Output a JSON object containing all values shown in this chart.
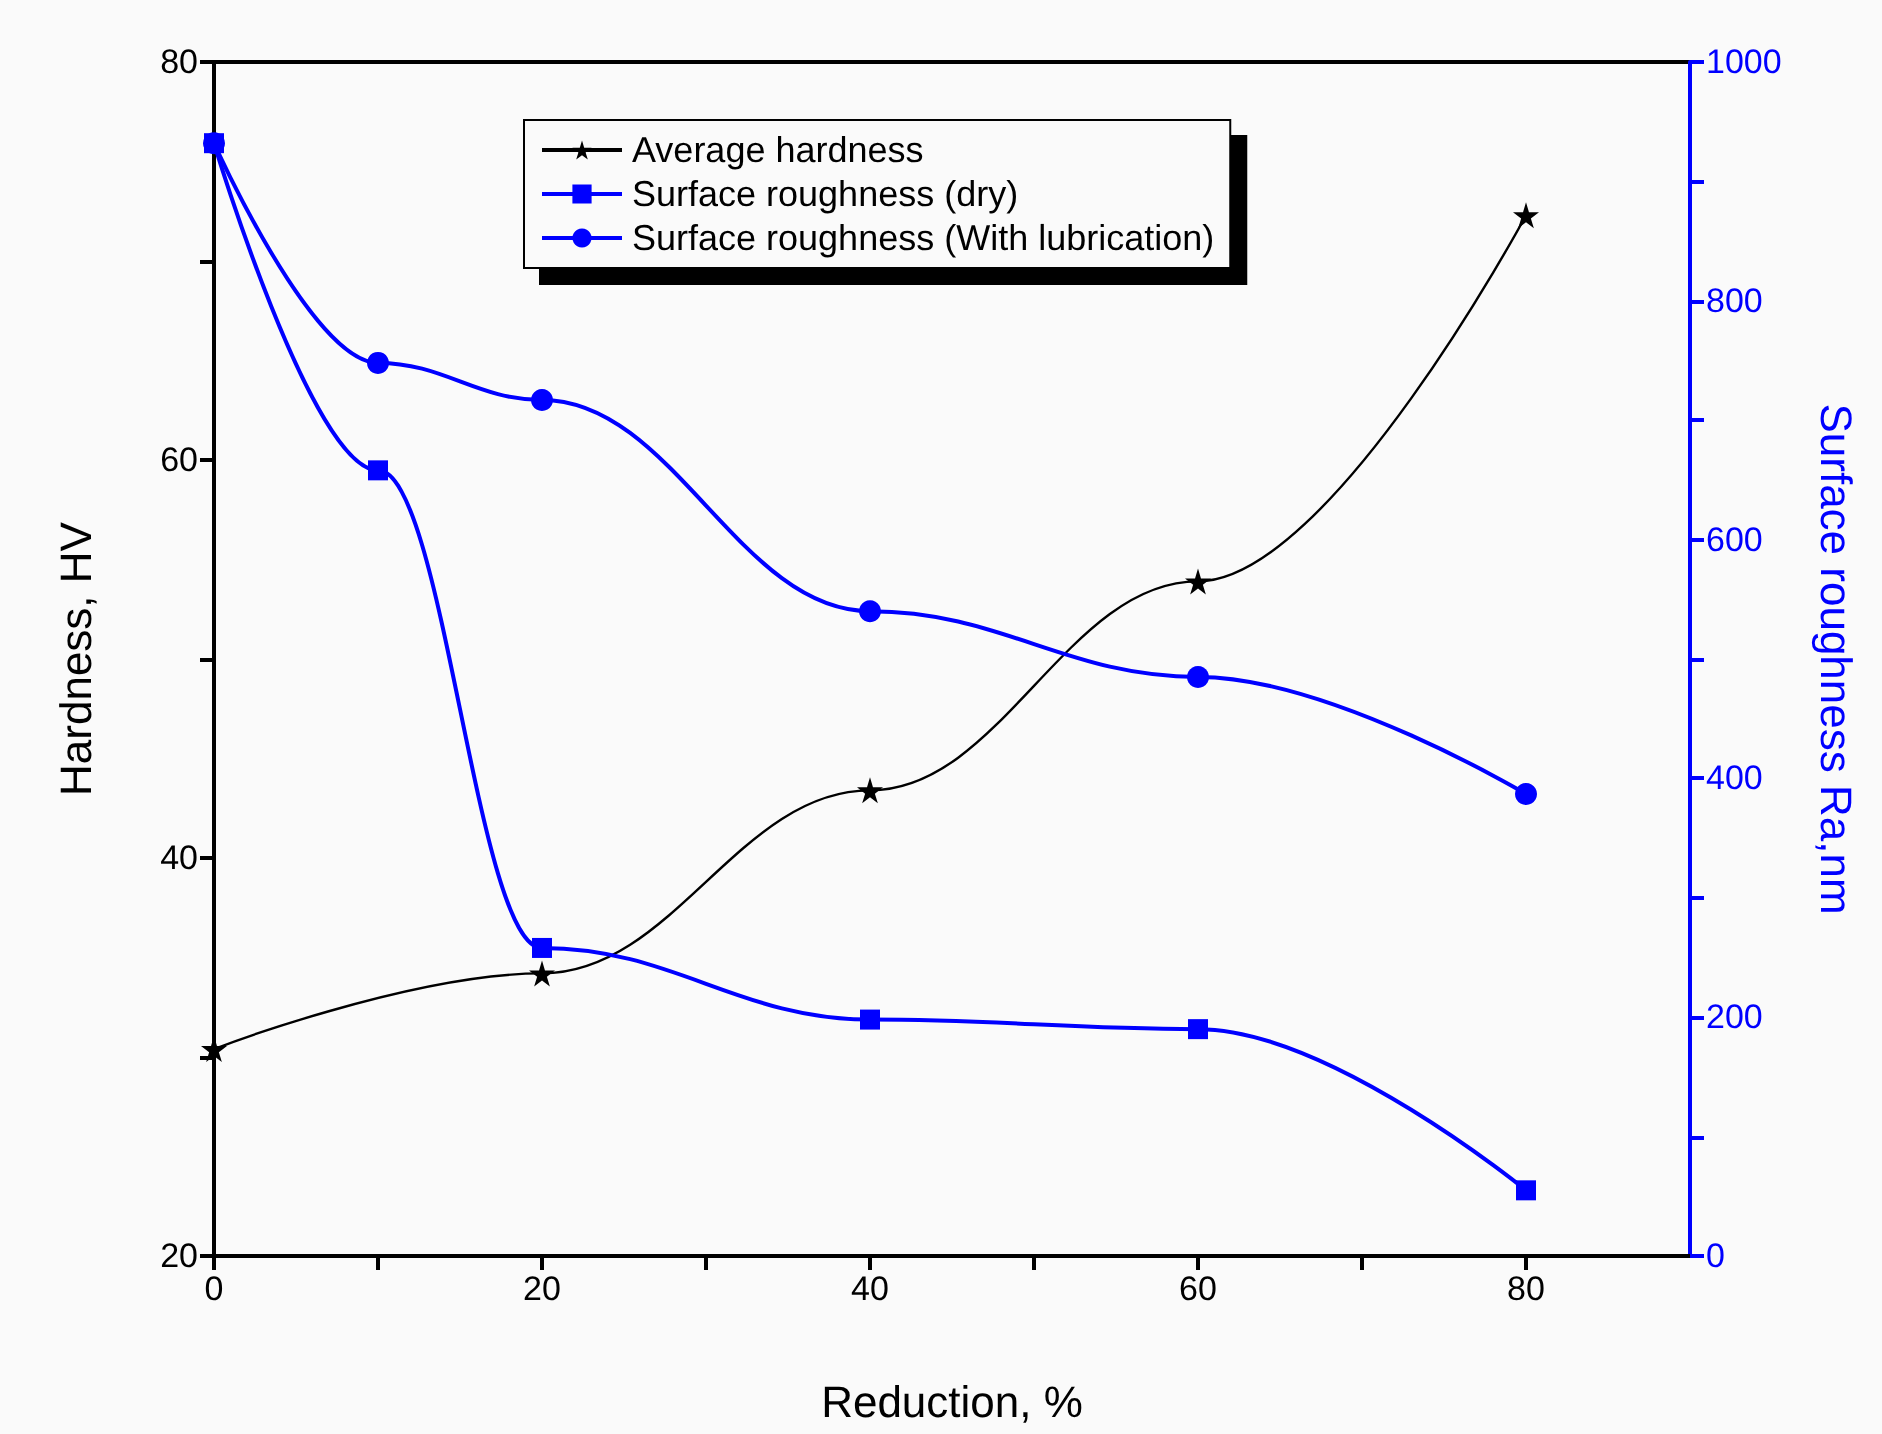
{
  "chart_data": {
    "type": "line",
    "xlabel": "Reduction, %",
    "ylabel": "Hardness, HV",
    "y2label": "Surface roughness Ra,nm",
    "series": [
      {
        "name": "Average hardness",
        "color": "#000000",
        "marker": "star",
        "x": [
          0,
          20,
          40,
          60,
          80
        ],
        "values": [
          30.4,
          34.2,
          43.4,
          53.9,
          72.3
        ]
      },
      {
        "name": "Surface roughness (dry)",
        "color": "#0000ff",
        "marker": "square",
        "axis": "y2",
        "x": [
          0,
          10,
          20,
          40,
          60,
          80
        ],
        "values": [
          932,
          658,
          258,
          198,
          190,
          55
        ]
      },
      {
        "name": "Surface roughness (With lubrication)",
        "color": "#0000ff",
        "marker": "circle",
        "axis": "y2",
        "x": [
          0,
          10,
          20,
          40,
          60,
          80
        ],
        "values": [
          932,
          748,
          717,
          540,
          485,
          387
        ]
      }
    ],
    "xlim": [
      0,
      90
    ],
    "xticks": [
      0,
      20,
      40,
      60,
      80
    ],
    "ylim": [
      20,
      80
    ],
    "yticks": [
      20,
      40,
      60,
      80
    ],
    "y2lim": [
      0,
      1000
    ],
    "y2ticks": [
      0,
      200,
      400,
      600,
      800,
      1000
    ],
    "grid": false,
    "legend": "top",
    "line_style": "solid"
  }
}
